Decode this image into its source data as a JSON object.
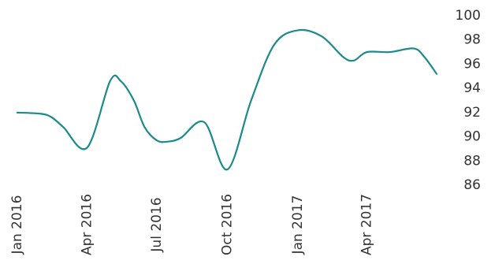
{
  "colors": {
    "line": "#1a8a8a",
    "text": "#333333"
  },
  "chart_data": {
    "type": "line",
    "title": "",
    "xlabel": "",
    "ylabel": "",
    "ylim": [
      86,
      100
    ],
    "y_ticks": [
      86,
      88,
      90,
      92,
      94,
      96,
      98,
      100
    ],
    "y_tick_labels": [
      "86",
      "88",
      "90",
      "92",
      "94",
      "96",
      "98",
      "100"
    ],
    "y_axis_position": "right",
    "grid": false,
    "legend": "none",
    "x_ticks": [
      "2016-01",
      "2016-04",
      "2016-07",
      "2016-10",
      "2017-01",
      "2017-04"
    ],
    "x_tick_labels": [
      "Jan 2016",
      "Apr 2016",
      "Jul 2016",
      "Oct 2016",
      "Jan 2017",
      "Apr 2017"
    ],
    "series": [
      {
        "x": [
          "2016-01",
          "2016-02",
          "2016-02-15",
          "2016-03",
          "2016-04",
          "2016-05",
          "2016-05-15",
          "2016-06",
          "2016-06-15",
          "2016-07",
          "2016-07-15",
          "2016-08",
          "2016-09",
          "2016-10",
          "2016-11",
          "2016-12",
          "2017-01",
          "2017-02",
          "2017-03",
          "2017-03-15",
          "2017-04",
          "2017-05",
          "2017-06",
          "2017-06-15",
          "2017-07"
        ],
        "values": [
          92.0,
          91.9,
          91.6,
          90.8,
          89.1,
          94.6,
          94.6,
          93.0,
          90.8,
          89.7,
          89.6,
          89.9,
          91.2,
          87.3,
          93.0,
          97.6,
          98.8,
          98.3,
          96.6,
          96.3,
          97.0,
          97.0,
          97.3,
          96.6,
          95.2
        ]
      }
    ]
  }
}
